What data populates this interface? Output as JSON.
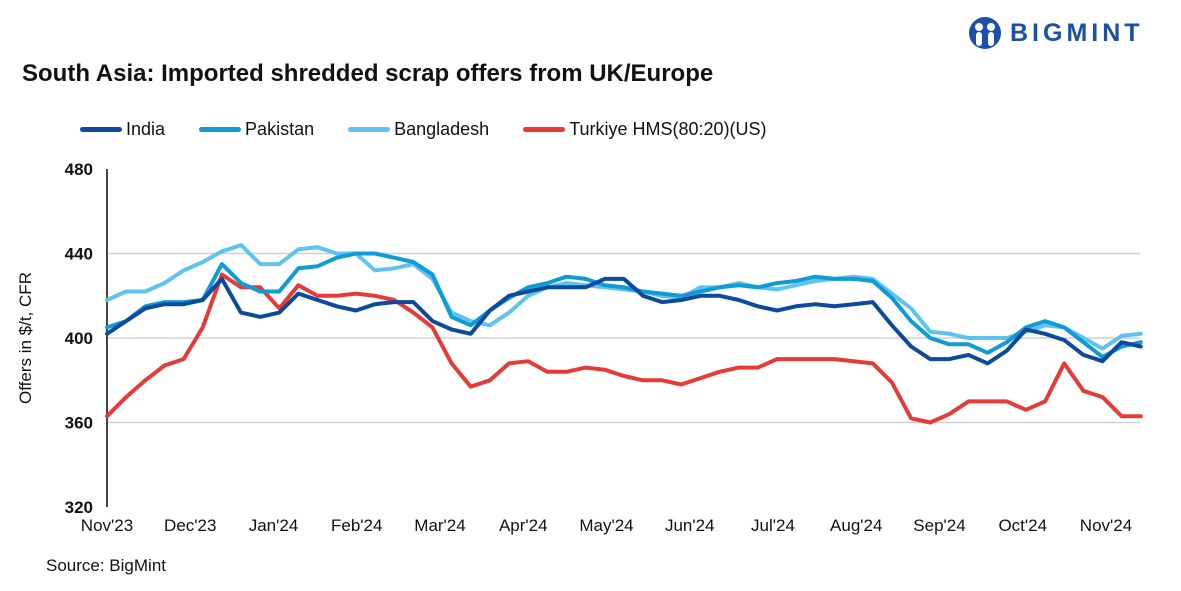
{
  "logo": {
    "text": "BIGMINT",
    "color": "#1c4fa8"
  },
  "source": "Source: BigMint",
  "chart_data": {
    "type": "line",
    "title": "South Asia: Imported shredded scrap offers from UK/Europe",
    "xlabel": "",
    "ylabel": "Offers in $/t, CFR",
    "ylim": [
      320,
      480
    ],
    "yticks": [
      320,
      360,
      400,
      440,
      480
    ],
    "xticks": [
      "Nov'23",
      "Dec'23",
      "Jan'24",
      "Feb'24",
      "Mar'24",
      "Apr'24",
      "May'24",
      "Jun'24",
      "Jul'24",
      "Aug'24",
      "Sep'24",
      "Oct'24",
      "Nov'24"
    ],
    "grid": true,
    "legend": "top",
    "x": [
      "2023-11-01",
      "2023-11-08",
      "2023-11-15",
      "2023-11-22",
      "2023-11-29",
      "2023-12-06",
      "2023-12-13",
      "2023-12-20",
      "2023-12-27",
      "2024-01-03",
      "2024-01-10",
      "2024-01-17",
      "2024-01-24",
      "2024-01-31",
      "2024-02-07",
      "2024-02-14",
      "2024-02-21",
      "2024-02-28",
      "2024-03-06",
      "2024-03-13",
      "2024-03-20",
      "2024-03-27",
      "2024-04-03",
      "2024-04-10",
      "2024-04-17",
      "2024-04-24",
      "2024-05-01",
      "2024-05-08",
      "2024-05-15",
      "2024-05-22",
      "2024-05-29",
      "2024-06-05",
      "2024-06-12",
      "2024-06-19",
      "2024-06-26",
      "2024-07-03",
      "2024-07-10",
      "2024-07-17",
      "2024-07-24",
      "2024-07-31",
      "2024-08-07",
      "2024-08-14",
      "2024-08-21",
      "2024-08-28",
      "2024-09-04",
      "2024-09-11",
      "2024-09-18",
      "2024-09-25",
      "2024-10-02",
      "2024-10-09",
      "2024-10-16",
      "2024-10-23",
      "2024-10-30",
      "2024-11-06",
      "2024-11-13"
    ],
    "series": [
      {
        "name": "India",
        "color": "#0d4a9e",
        "values": [
          402,
          408,
          414,
          416,
          416,
          418,
          428,
          412,
          410,
          412,
          421,
          418,
          415,
          413,
          416,
          417,
          417,
          408,
          404,
          402,
          413,
          420,
          422,
          424,
          424,
          424,
          428,
          428,
          420,
          417,
          418,
          420,
          420,
          418,
          415,
          413,
          415,
          416,
          415,
          416,
          417,
          406,
          396,
          390,
          390,
          392,
          388,
          394,
          404,
          402,
          399,
          392,
          389,
          398,
          396
        ]
      },
      {
        "name": "Pakistan",
        "color": "#0e9bd6",
        "values": [
          405,
          408,
          415,
          417,
          417,
          418,
          435,
          426,
          422,
          422,
          433,
          434,
          438,
          440,
          440,
          438,
          436,
          430,
          410,
          406,
          413,
          419,
          424,
          426,
          429,
          428,
          425,
          424,
          422,
          421,
          420,
          422,
          424,
          425,
          424,
          426,
          427,
          429,
          428,
          428,
          427,
          419,
          408,
          400,
          397,
          397,
          393,
          398,
          405,
          408,
          405,
          398,
          391,
          396,
          398
        ]
      },
      {
        "name": "Bangladesh",
        "color": "#5ec4ef",
        "values": [
          418,
          422,
          422,
          426,
          432,
          436,
          441,
          444,
          435,
          435,
          442,
          443,
          440,
          440,
          432,
          433,
          435,
          428,
          412,
          408,
          406,
          412,
          420,
          424,
          426,
          425,
          424,
          423,
          422,
          420,
          419,
          424,
          424,
          426,
          424,
          423,
          425,
          427,
          428,
          429,
          428,
          421,
          414,
          403,
          402,
          400,
          400,
          400,
          403,
          406,
          405,
          400,
          395,
          401,
          402
        ]
      },
      {
        "name": "Turkiye HMS(80:20)(US)",
        "color": "#e53a35",
        "values": [
          363,
          372,
          380,
          387,
          390,
          405,
          430,
          424,
          424,
          414,
          425,
          420,
          420,
          421,
          420,
          418,
          412,
          405,
          388,
          377,
          380,
          388,
          389,
          384,
          384,
          386,
          385,
          382,
          380,
          380,
          378,
          381,
          384,
          386,
          386,
          390,
          390,
          390,
          390,
          389,
          388,
          379,
          362,
          360,
          364,
          370,
          370,
          370,
          366,
          370,
          388,
          375,
          372,
          363,
          363
        ]
      }
    ]
  }
}
